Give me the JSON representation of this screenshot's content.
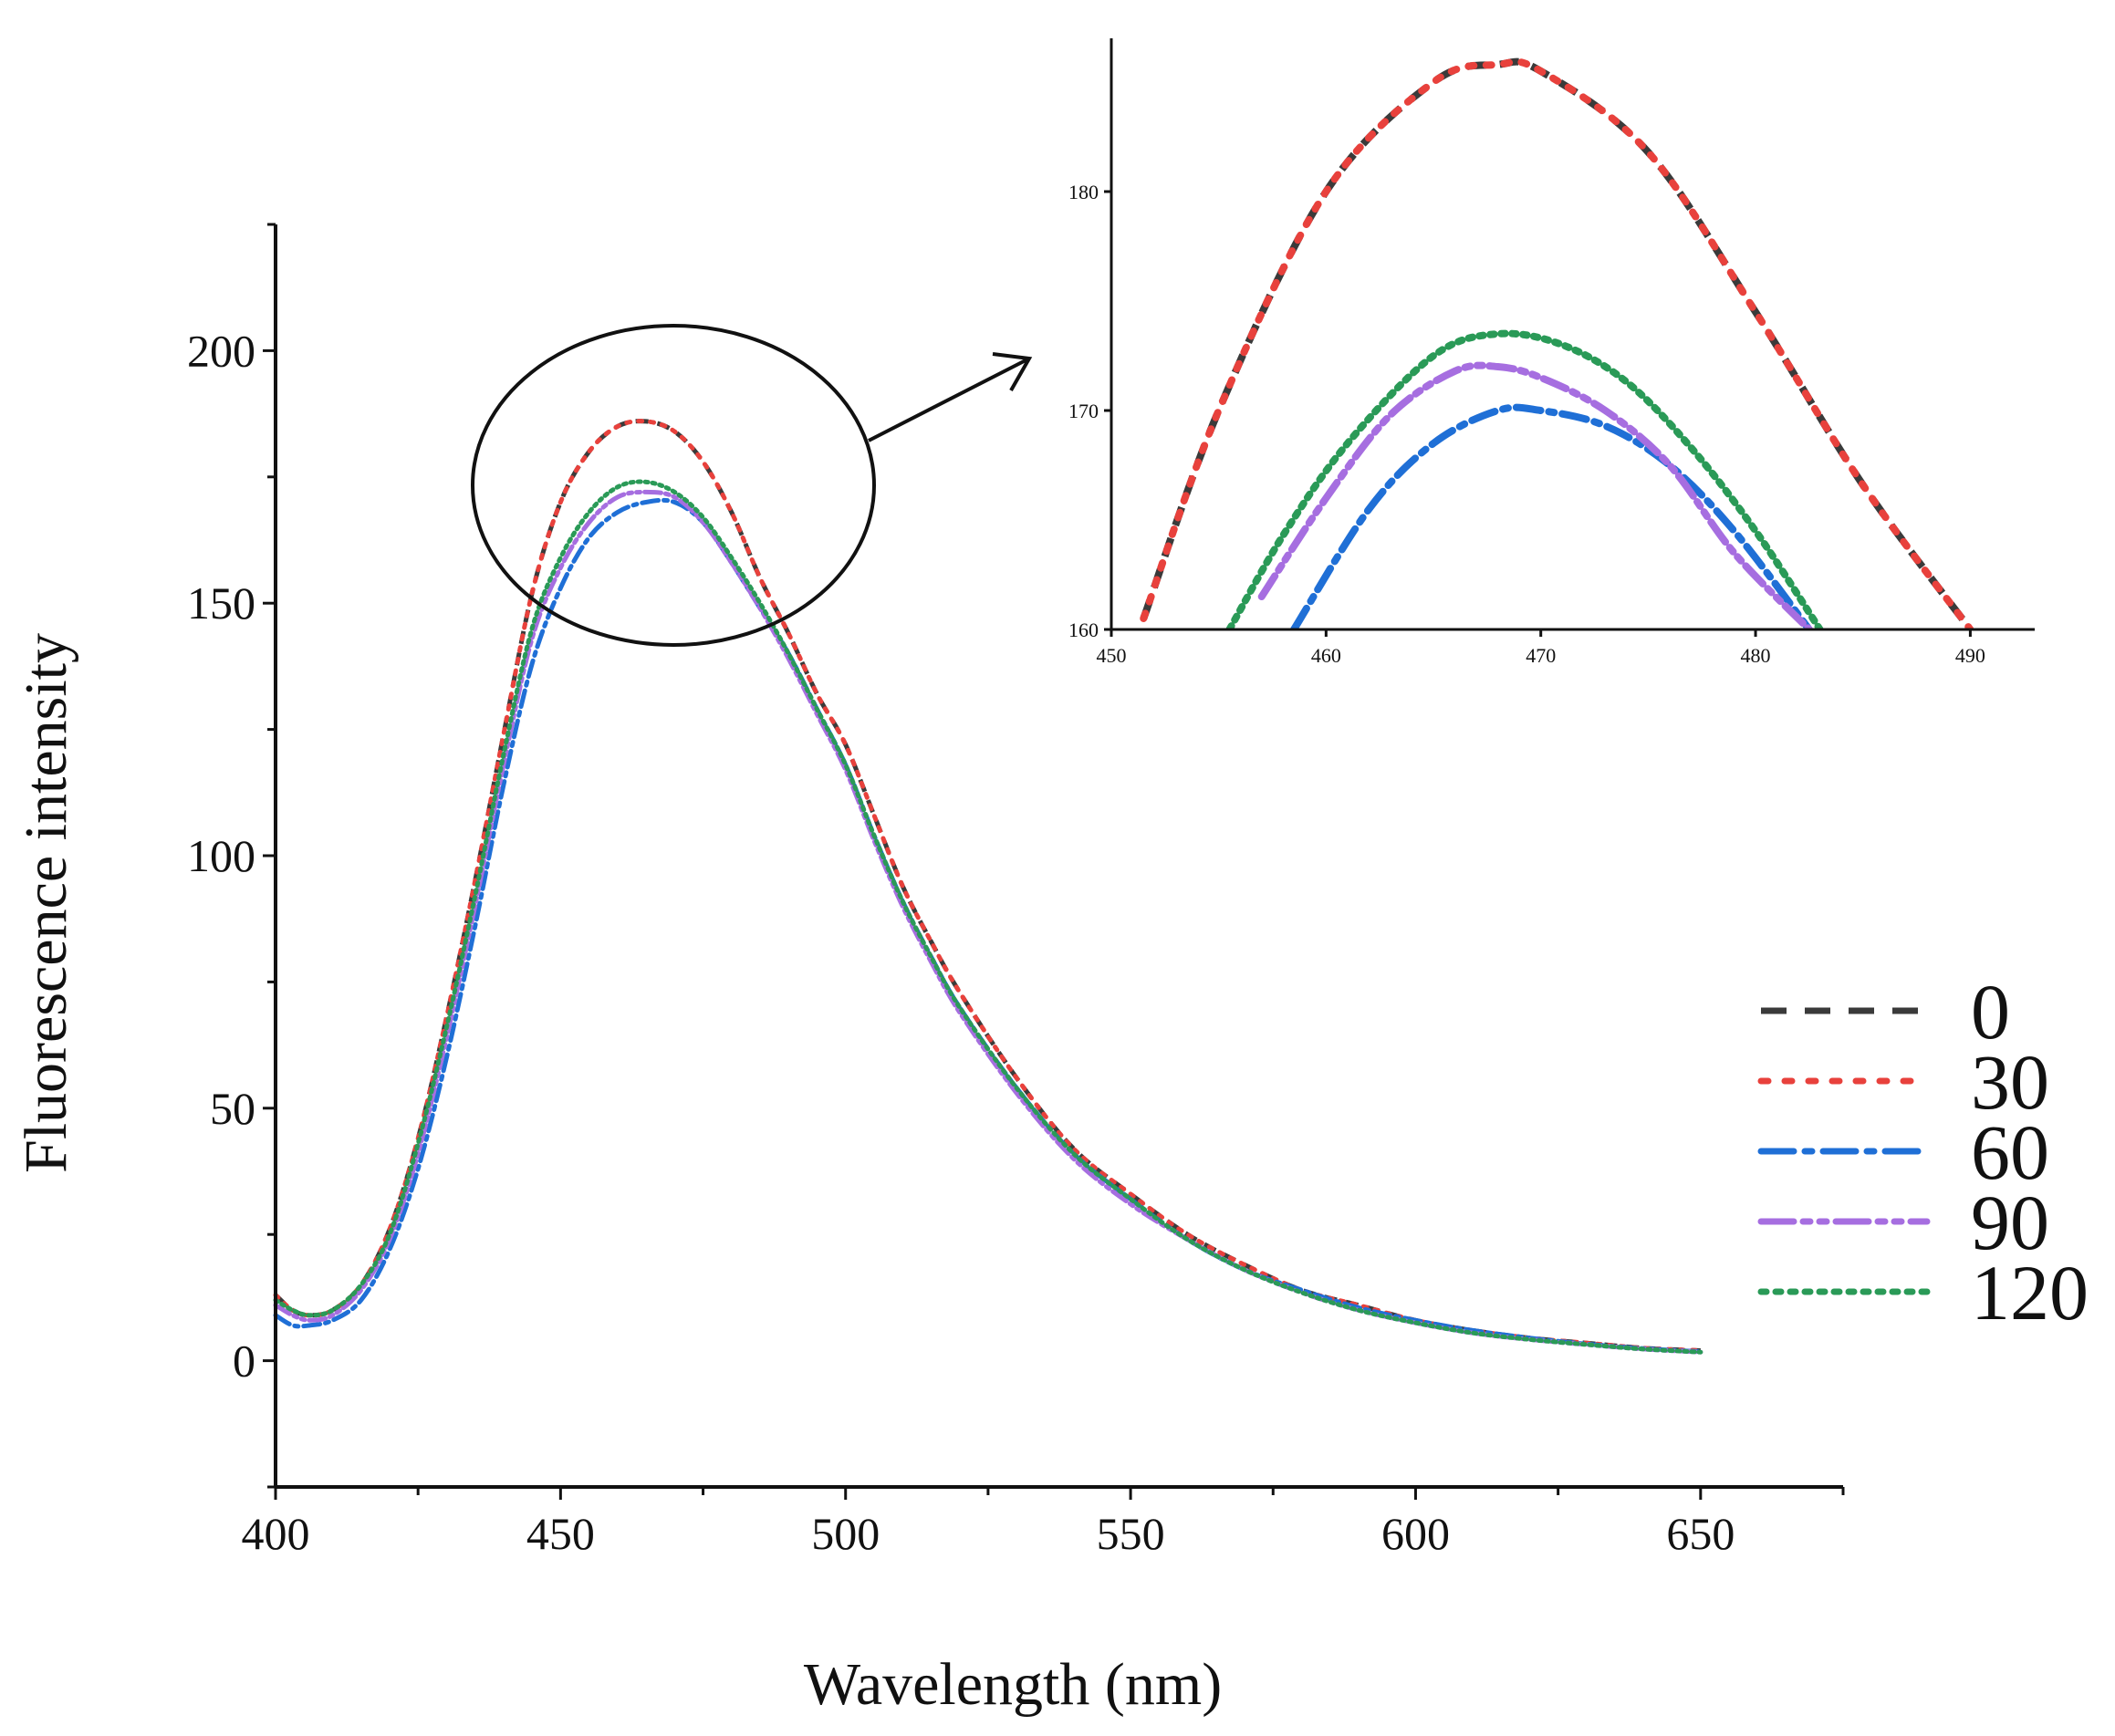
{
  "chart_data": [
    {
      "type": "line",
      "panel": "main",
      "xlabel": "Wavelength (nm)",
      "ylabel": "Fluorescence intensity",
      "xlim": [
        400,
        675
      ],
      "ylim": [
        -25,
        225
      ],
      "xticks": [
        400,
        450,
        500,
        550,
        600,
        650
      ],
      "yticks": [
        0,
        50,
        100,
        150,
        200
      ],
      "grid": false,
      "legend": "right",
      "series": [
        {
          "name": "0",
          "color": "#3a3a3a",
          "dash": "dashed",
          "x": [
            400,
            403,
            406,
            410,
            415,
            420,
            425,
            430,
            435,
            440,
            445,
            450,
            455,
            460,
            465,
            470,
            475,
            480,
            485,
            490,
            495,
            500,
            505,
            510,
            515,
            520,
            530,
            540,
            550,
            560,
            570,
            580,
            590,
            600,
            610,
            620,
            630,
            640,
            650
          ],
          "y": [
            13,
            10,
            9,
            10,
            15,
            26,
            44,
            68,
            95,
            124,
            152,
            170,
            180,
            185,
            186,
            184,
            178,
            168,
            155,
            144,
            132,
            122,
            108,
            94,
            83,
            73,
            56,
            42,
            33,
            25,
            19,
            14,
            11,
            8,
            6,
            4.5,
            3.5,
            2.5,
            2
          ]
        },
        {
          "name": "30",
          "color": "#e8413c",
          "dash": "dotted",
          "x": [
            400,
            403,
            406,
            410,
            415,
            420,
            425,
            430,
            435,
            440,
            445,
            450,
            455,
            460,
            465,
            470,
            475,
            480,
            485,
            490,
            495,
            500,
            505,
            510,
            515,
            520,
            530,
            540,
            550,
            560,
            570,
            580,
            590,
            600,
            610,
            620,
            630,
            640,
            650
          ],
          "y": [
            13,
            10,
            9,
            10,
            15,
            26,
            44,
            68,
            95,
            124,
            152,
            170,
            180,
            185,
            186,
            184,
            178,
            168,
            155,
            144,
            132,
            122,
            108,
            94,
            83,
            73,
            56,
            42,
            33,
            25,
            19,
            14,
            11,
            8,
            6,
            4.5,
            3.5,
            2.5,
            2
          ]
        },
        {
          "name": "60",
          "color": "#1f6fd6",
          "dash": "dashdot",
          "x": [
            400,
            403,
            406,
            410,
            415,
            420,
            425,
            430,
            435,
            440,
            445,
            450,
            455,
            460,
            465,
            470,
            475,
            480,
            485,
            490,
            495,
            500,
            505,
            510,
            515,
            520,
            530,
            540,
            550,
            560,
            570,
            580,
            590,
            600,
            610,
            620,
            630,
            640,
            650
          ],
          "y": [
            9,
            7,
            7,
            8,
            12,
            22,
            38,
            60,
            86,
            114,
            138,
            153,
            163,
            168,
            170,
            170,
            166,
            158,
            149,
            140,
            129,
            118,
            104,
            91,
            80,
            70,
            54,
            41,
            32,
            24,
            18,
            14,
            10.5,
            8,
            6,
            4.5,
            3.3,
            2.4,
            1.8
          ]
        },
        {
          "name": "90",
          "color": "#a66ee0",
          "dash": "dashdotdot",
          "x": [
            400,
            403,
            406,
            410,
            415,
            420,
            425,
            430,
            435,
            440,
            445,
            450,
            455,
            460,
            465,
            470,
            475,
            480,
            485,
            490,
            495,
            500,
            505,
            510,
            515,
            520,
            530,
            540,
            550,
            560,
            570,
            580,
            590,
            600,
            610,
            620,
            630,
            640,
            650
          ],
          "y": [
            11,
            9,
            8,
            9,
            14,
            24,
            41,
            64,
            90,
            118,
            143,
            157,
            166,
            171,
            172,
            171,
            166,
            158,
            149,
            139,
            128,
            117,
            103,
            90,
            79,
            69,
            53,
            40,
            31,
            24,
            18,
            13.5,
            10,
            7.5,
            5.5,
            4.2,
            3.2,
            2.3,
            1.7
          ]
        },
        {
          "name": "120",
          "color": "#2a9a57",
          "dash": "dense-dot",
          "x": [
            400,
            403,
            406,
            410,
            415,
            420,
            425,
            430,
            435,
            440,
            445,
            450,
            455,
            460,
            465,
            470,
            475,
            480,
            485,
            490,
            495,
            500,
            505,
            510,
            515,
            520,
            530,
            540,
            550,
            560,
            570,
            580,
            590,
            600,
            610,
            620,
            630,
            640,
            650
          ],
          "y": [
            12,
            10,
            9,
            10,
            15,
            25,
            43,
            66,
            92,
            120,
            145,
            159,
            168,
            173,
            174,
            172,
            167,
            159,
            150,
            140,
            129,
            118,
            104,
            91,
            80,
            70,
            54,
            41,
            32,
            24,
            18,
            13.5,
            10,
            7.5,
            5.5,
            4.2,
            3.2,
            2.3,
            1.7
          ]
        }
      ]
    },
    {
      "type": "line",
      "panel": "inset",
      "xlabel": "",
      "ylabel": "",
      "xlim": [
        450,
        493
      ],
      "ylim": [
        160,
        187
      ],
      "xticks": [
        450,
        460,
        470,
        480,
        490
      ],
      "yticks": [
        160,
        170,
        180
      ],
      "grid": false,
      "series": [
        {
          "name": "0",
          "color": "#3a3a3a",
          "dash": "dashed",
          "x": [
            451.5,
            455,
            460,
            465,
            468,
            470,
            475,
            480,
            485,
            490
          ],
          "y": [
            160.5,
            170,
            180,
            185,
            185.8,
            185.5,
            181.8,
            174.5,
            166.6,
            160
          ]
        },
        {
          "name": "30",
          "color": "#e8413c",
          "dash": "dotted",
          "x": [
            451.5,
            455,
            460,
            465,
            468,
            470,
            475,
            480,
            485,
            490
          ],
          "y": [
            160.5,
            170,
            180,
            185,
            185.8,
            185.5,
            181.8,
            174.5,
            166.6,
            160
          ]
        },
        {
          "name": "60",
          "color": "#1f6fd6",
          "dash": "dashdot",
          "x": [
            458.5,
            462,
            465,
            468,
            470,
            473,
            476,
            479,
            482.5
          ],
          "y": [
            160,
            165.5,
            168.5,
            170,
            170,
            169.3,
            167.5,
            164.5,
            160
          ]
        },
        {
          "name": "90",
          "color": "#a66ee0",
          "dash": "dashdotdot",
          "x": [
            457,
            460,
            463,
            466,
            468,
            470,
            473,
            476,
            479,
            482.5
          ],
          "y": [
            161.5,
            166,
            169.8,
            171.8,
            172,
            171.5,
            170,
            167.5,
            163.5,
            160
          ]
        },
        {
          "name": "120",
          "color": "#2a9a57",
          "dash": "dense-dot",
          "x": [
            455.5,
            458,
            461,
            465,
            468,
            471,
            474,
            477,
            480,
            483
          ],
          "y": [
            160,
            164.3,
            168.5,
            172.5,
            173.5,
            173,
            171.3,
            168.3,
            164.5,
            160
          ]
        }
      ]
    }
  ]
}
